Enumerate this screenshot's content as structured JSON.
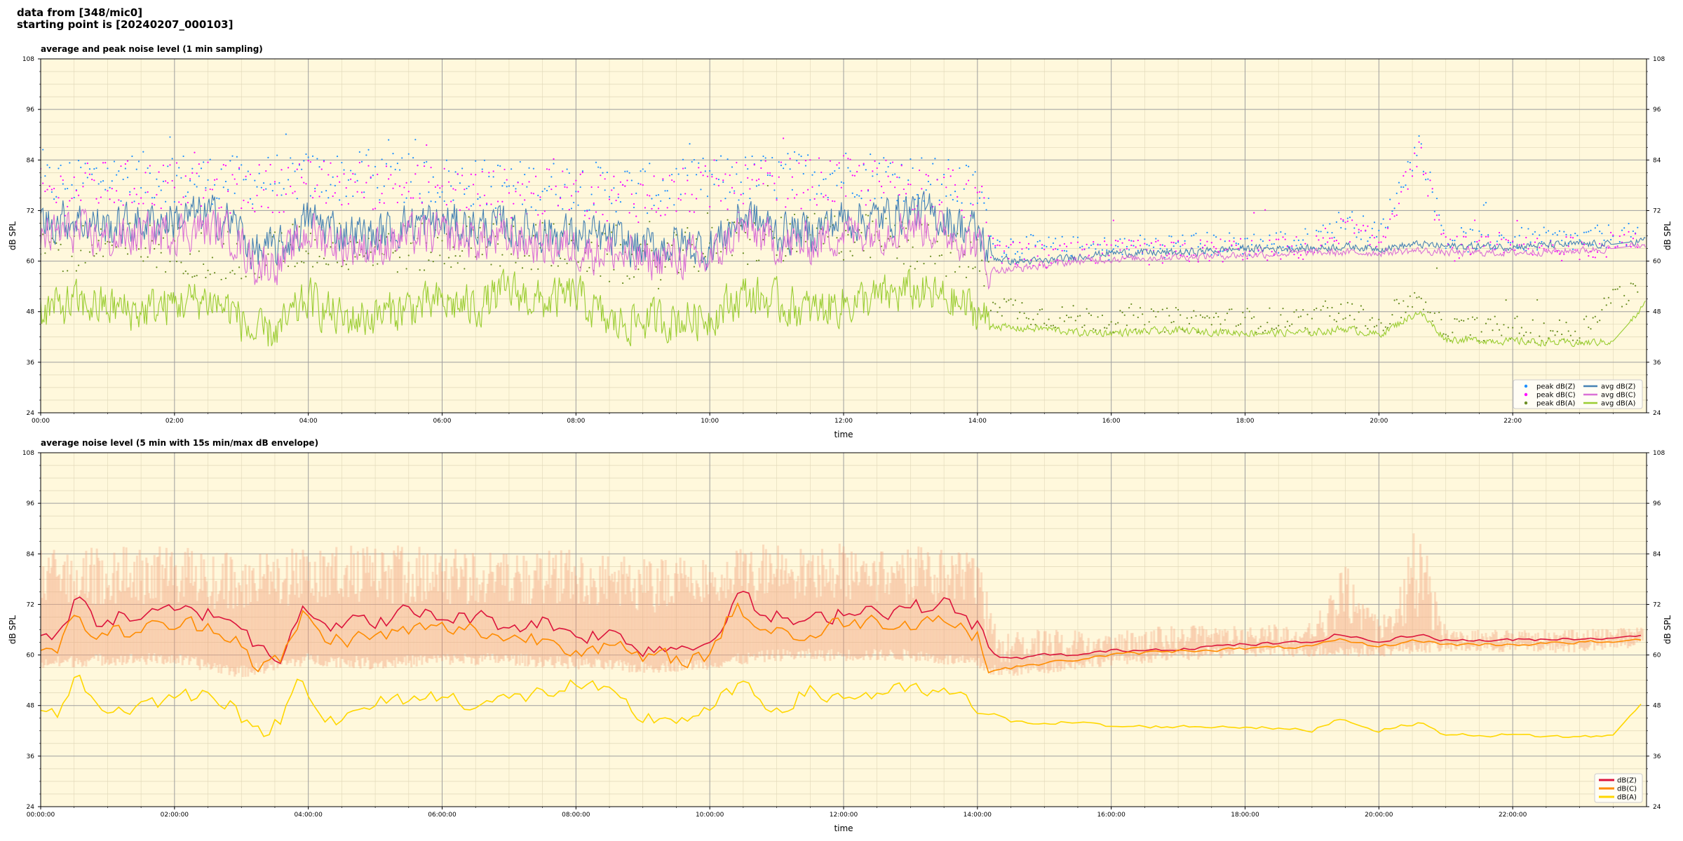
{
  "header": {
    "line1": "data from [348/mic0]",
    "line2": "starting point is [20240207_000103]"
  },
  "colors": {
    "background": "#fff8dc",
    "peak_z": "#1e90ff",
    "peak_c": "#ff00ff",
    "peak_a": "#6b8e23",
    "avg_z": "#4682b4",
    "avg_c": "#da70d6",
    "avg_a": "#9acd32",
    "dB_z": "#dc143c",
    "dB_c": "#ff8c00",
    "dB_a": "#ffd700",
    "envelope": "#f4a582"
  },
  "chart_data": [
    {
      "type": "line",
      "title": "average and peak noise level (1 min sampling)",
      "xlabel": "time",
      "ylabel": "dB SPL",
      "xlim": [
        0,
        24
      ],
      "ylim": [
        24,
        108
      ],
      "yticks": [
        "24",
        "36",
        "48",
        "60",
        "72",
        "84",
        "96",
        "108"
      ],
      "xticks": [
        "00:00",
        "02:00",
        "04:00",
        "06:00",
        "08:00",
        "10:00",
        "12:00",
        "14:00",
        "16:00",
        "18:00",
        "20:00",
        "22:00"
      ],
      "grid": true,
      "legend_position": "bottom-right",
      "series": [
        {
          "name": "peak dB(Z)",
          "kind": "scatter",
          "color": "#1e90ff",
          "x": [
            0,
            1,
            2,
            3,
            4,
            5,
            6,
            7,
            8,
            9,
            10,
            11,
            12,
            13,
            14,
            14.3,
            15,
            16,
            17,
            18,
            19,
            19.5,
            20,
            20.6,
            21,
            22,
            23,
            23.5
          ],
          "y": [
            78,
            80,
            80,
            79,
            80,
            80,
            79,
            78,
            78,
            77,
            79,
            80,
            81,
            80,
            77,
            64,
            63,
            63,
            64,
            64,
            65,
            70,
            66,
            88,
            65,
            65,
            65,
            66
          ]
        },
        {
          "name": "peak dB(C)",
          "kind": "scatter",
          "color": "#ff00ff",
          "x": [
            0,
            1,
            2,
            3,
            4,
            5,
            6,
            7,
            8,
            9,
            10,
            11,
            12,
            13,
            14,
            14.3,
            15,
            16,
            17,
            18,
            19,
            19.5,
            20,
            20.6,
            21,
            22,
            23,
            23.5
          ],
          "y": [
            76,
            78,
            78,
            77,
            78,
            78,
            77,
            76,
            76,
            75,
            77,
            78,
            79,
            78,
            75,
            62,
            61,
            62,
            62,
            63,
            63,
            68,
            64,
            86,
            63,
            63,
            63,
            64
          ]
        },
        {
          "name": "peak dB(A)",
          "kind": "scatter",
          "color": "#6b8e23",
          "x": [
            0,
            1,
            2,
            3,
            4,
            5,
            6,
            7,
            8,
            9,
            10,
            11,
            12,
            13,
            14,
            14.3,
            15,
            16,
            17,
            18,
            19,
            19.5,
            20,
            20.6,
            21,
            22,
            23,
            23.5
          ],
          "y": [
            62,
            64,
            63,
            60,
            64,
            63,
            63,
            64,
            63,
            58,
            64,
            65,
            66,
            64,
            60,
            50,
            47,
            46,
            46,
            46,
            46,
            48,
            45,
            52,
            44,
            44,
            43,
            52
          ]
        },
        {
          "name": "avg dB(Z)",
          "kind": "line",
          "color": "#4682b4",
          "x": [
            0,
            0.5,
            1,
            1.5,
            2,
            2.5,
            2.9,
            3.2,
            3.6,
            4,
            4.5,
            5,
            5.5,
            6,
            6.5,
            7,
            7.5,
            8,
            8.5,
            9,
            9.5,
            10,
            10.5,
            11,
            11.5,
            12,
            12.5,
            13,
            13.5,
            14,
            14.2,
            14.5,
            15,
            15.5,
            16,
            17,
            18,
            19,
            19.5,
            20,
            20.6,
            21,
            22,
            23,
            23.5,
            24
          ],
          "y": [
            69,
            70,
            68,
            69,
            70,
            71,
            69,
            62,
            63,
            70,
            67,
            66,
            69,
            69,
            68,
            68,
            67,
            66,
            65,
            63,
            64,
            63,
            71,
            67,
            67,
            70,
            70,
            72,
            70,
            67,
            61,
            60,
            60,
            61,
            62,
            62,
            63,
            63,
            63.5,
            63,
            64,
            63.5,
            63.5,
            64,
            64,
            65
          ]
        },
        {
          "name": "avg dB(C)",
          "kind": "line",
          "color": "#da70d6",
          "x": [
            0,
            0.5,
            1,
            1.5,
            2,
            2.5,
            2.9,
            3.2,
            3.6,
            4,
            4.5,
            5,
            5.5,
            6,
            6.5,
            7,
            7.5,
            8,
            8.5,
            9,
            9.5,
            10,
            10.5,
            11,
            11.5,
            12,
            12.5,
            13,
            13.5,
            14,
            14.2,
            14.5,
            15,
            15.5,
            16,
            17,
            18,
            19,
            19.5,
            20,
            20.6,
            21,
            22,
            23,
            23.5,
            24
          ],
          "y": [
            66,
            67,
            65,
            66,
            67,
            68,
            66,
            59,
            60,
            67,
            64,
            63,
            66,
            66,
            65,
            65,
            64,
            63,
            62,
            60,
            61,
            60,
            68,
            64,
            64,
            67,
            67,
            69,
            67,
            64,
            58,
            58,
            59,
            60,
            60.5,
            61,
            61.5,
            62,
            62,
            62,
            62.5,
            62,
            62,
            62.5,
            63,
            64
          ]
        },
        {
          "name": "avg dB(A)",
          "kind": "line",
          "color": "#9acd32",
          "x": [
            0,
            0.5,
            1,
            1.5,
            2,
            2.5,
            2.9,
            3.2,
            3.6,
            4,
            4.5,
            5,
            5.5,
            6,
            6.5,
            7,
            7.5,
            8,
            8.5,
            9,
            9.5,
            10,
            10.5,
            11,
            11.5,
            12,
            12.5,
            13,
            13.5,
            14,
            14.2,
            14.5,
            15,
            15.5,
            16,
            17,
            18,
            19,
            19.5,
            20,
            20.6,
            21,
            22,
            23,
            23.5,
            24
          ],
          "y": [
            48,
            50,
            49,
            48,
            50,
            51,
            48,
            42,
            44,
            51,
            46,
            47,
            49,
            50,
            49,
            53,
            50,
            52,
            45,
            46,
            46,
            47,
            52,
            50,
            48,
            50,
            51,
            53,
            51,
            48,
            45,
            44,
            44,
            43,
            43,
            43.5,
            43,
            43,
            44,
            42.5,
            48,
            41.5,
            41,
            40.5,
            41,
            50
          ]
        }
      ]
    },
    {
      "type": "line",
      "title": "average noise level (5 min with 15s min/max dB envelope)",
      "xlabel": "time",
      "ylabel": "dB SPL",
      "xlim": [
        0,
        24
      ],
      "ylim": [
        24,
        108
      ],
      "yticks": [
        "24",
        "36",
        "48",
        "60",
        "72",
        "84",
        "96",
        "108"
      ],
      "xticks": [
        "00:00:00",
        "02:00:00",
        "04:00:00",
        "06:00:00",
        "08:00:00",
        "10:00:00",
        "12:00:00",
        "14:00:00",
        "16:00:00",
        "18:00:00",
        "20:00:00",
        "22:00:00"
      ],
      "grid": true,
      "legend_position": "bottom-right",
      "envelope": {
        "x": [
          0,
          1,
          2,
          3,
          4,
          5,
          6,
          7,
          8,
          9,
          10,
          11,
          12,
          13,
          14,
          14.3,
          15,
          16,
          17,
          18,
          19,
          19.5,
          20,
          20.6,
          21,
          22,
          23,
          24
        ],
        "min": [
          58,
          59,
          59,
          56,
          59,
          58,
          59,
          59,
          58,
          57,
          58,
          60,
          60,
          60,
          58,
          56,
          57,
          59,
          60,
          61,
          61,
          61,
          61,
          62,
          62,
          62,
          62,
          63
        ],
        "max": [
          85,
          86,
          86,
          84,
          86,
          86,
          86,
          85,
          85,
          83,
          86,
          87,
          87,
          86,
          84,
          66,
          66,
          66,
          67,
          67,
          68,
          82,
          68,
          93,
          66,
          66,
          66,
          67
        ]
      },
      "series": [
        {
          "name": "dB(Z)",
          "color": "#dc143c",
          "x": [
            0,
            0.3,
            0.55,
            0.8,
            1,
            1.5,
            2,
            2.5,
            2.9,
            3.2,
            3.6,
            3.9,
            4.2,
            4.5,
            5,
            5.5,
            6,
            6.5,
            7,
            7.5,
            8,
            8.5,
            9,
            9.5,
            10,
            10.4,
            10.8,
            11,
            11.5,
            12,
            12.5,
            13,
            13.5,
            14,
            14.2,
            14.5,
            15,
            15.5,
            16,
            17,
            18,
            19,
            19.4,
            20,
            20.6,
            21,
            22,
            23,
            23.5,
            24
          ],
          "y": [
            65,
            66,
            73,
            68,
            69,
            69,
            70,
            70,
            69,
            62,
            60,
            73,
            68,
            67,
            68,
            70,
            69,
            69,
            67,
            68,
            65,
            65,
            62,
            62,
            63,
            75,
            69,
            69,
            67,
            71,
            71,
            71,
            72,
            67,
            60,
            59,
            60,
            60,
            61,
            61.5,
            62.5,
            63,
            65,
            63,
            65,
            63.5,
            63.5,
            64,
            64,
            65
          ]
        },
        {
          "name": "dB(C)",
          "color": "#ff8c00",
          "x": [
            0,
            0.3,
            0.55,
            0.8,
            1,
            1.5,
            2,
            2.5,
            2.9,
            3.2,
            3.6,
            3.9,
            4.2,
            4.5,
            5,
            5.5,
            6,
            6.5,
            7,
            7.5,
            8,
            8.5,
            9,
            9.5,
            10,
            10.4,
            10.8,
            11,
            11.5,
            12,
            12.5,
            13,
            13.5,
            14,
            14.2,
            14.5,
            15,
            15.5,
            16,
            17,
            18,
            19,
            19.4,
            20,
            20.6,
            21,
            22,
            23,
            23.5,
            24
          ],
          "y": [
            62,
            63,
            69,
            65,
            65,
            66,
            67,
            67,
            65,
            58,
            58,
            70,
            64,
            64,
            64,
            66,
            66,
            66,
            64,
            64,
            62,
            62,
            59,
            59,
            60,
            72,
            66,
            66,
            64,
            68,
            68,
            68,
            69,
            64,
            57,
            57,
            58,
            59,
            60,
            61,
            61.5,
            62,
            63.5,
            62,
            63.5,
            62.5,
            62.5,
            63,
            63,
            64
          ]
        },
        {
          "name": "dB(A)",
          "color": "#ffd700",
          "x": [
            0,
            0.3,
            0.55,
            0.8,
            1,
            1.5,
            2,
            2.5,
            2.9,
            3.2,
            3.6,
            3.9,
            4.2,
            4.5,
            5,
            5.5,
            6,
            6.5,
            7,
            7.5,
            8,
            8.5,
            9,
            9.5,
            10,
            10.4,
            10.8,
            11,
            11.5,
            12,
            12.5,
            13,
            13.5,
            14,
            14.2,
            14.5,
            15,
            15.5,
            16,
            17,
            18,
            19,
            19.4,
            20,
            20.6,
            21,
            22,
            23,
            23.5,
            24
          ],
          "y": [
            48,
            47,
            57,
            48,
            47,
            48,
            50,
            51,
            49,
            40,
            45,
            56,
            46,
            44,
            48,
            50,
            50,
            49,
            49,
            51,
            53,
            50,
            45,
            45,
            46,
            53,
            48,
            48,
            51,
            50,
            51,
            51,
            51,
            47,
            47,
            44,
            44,
            44,
            43,
            43,
            43,
            42,
            45,
            42,
            44,
            41,
            41,
            40.5,
            41,
            50
          ]
        }
      ]
    }
  ]
}
